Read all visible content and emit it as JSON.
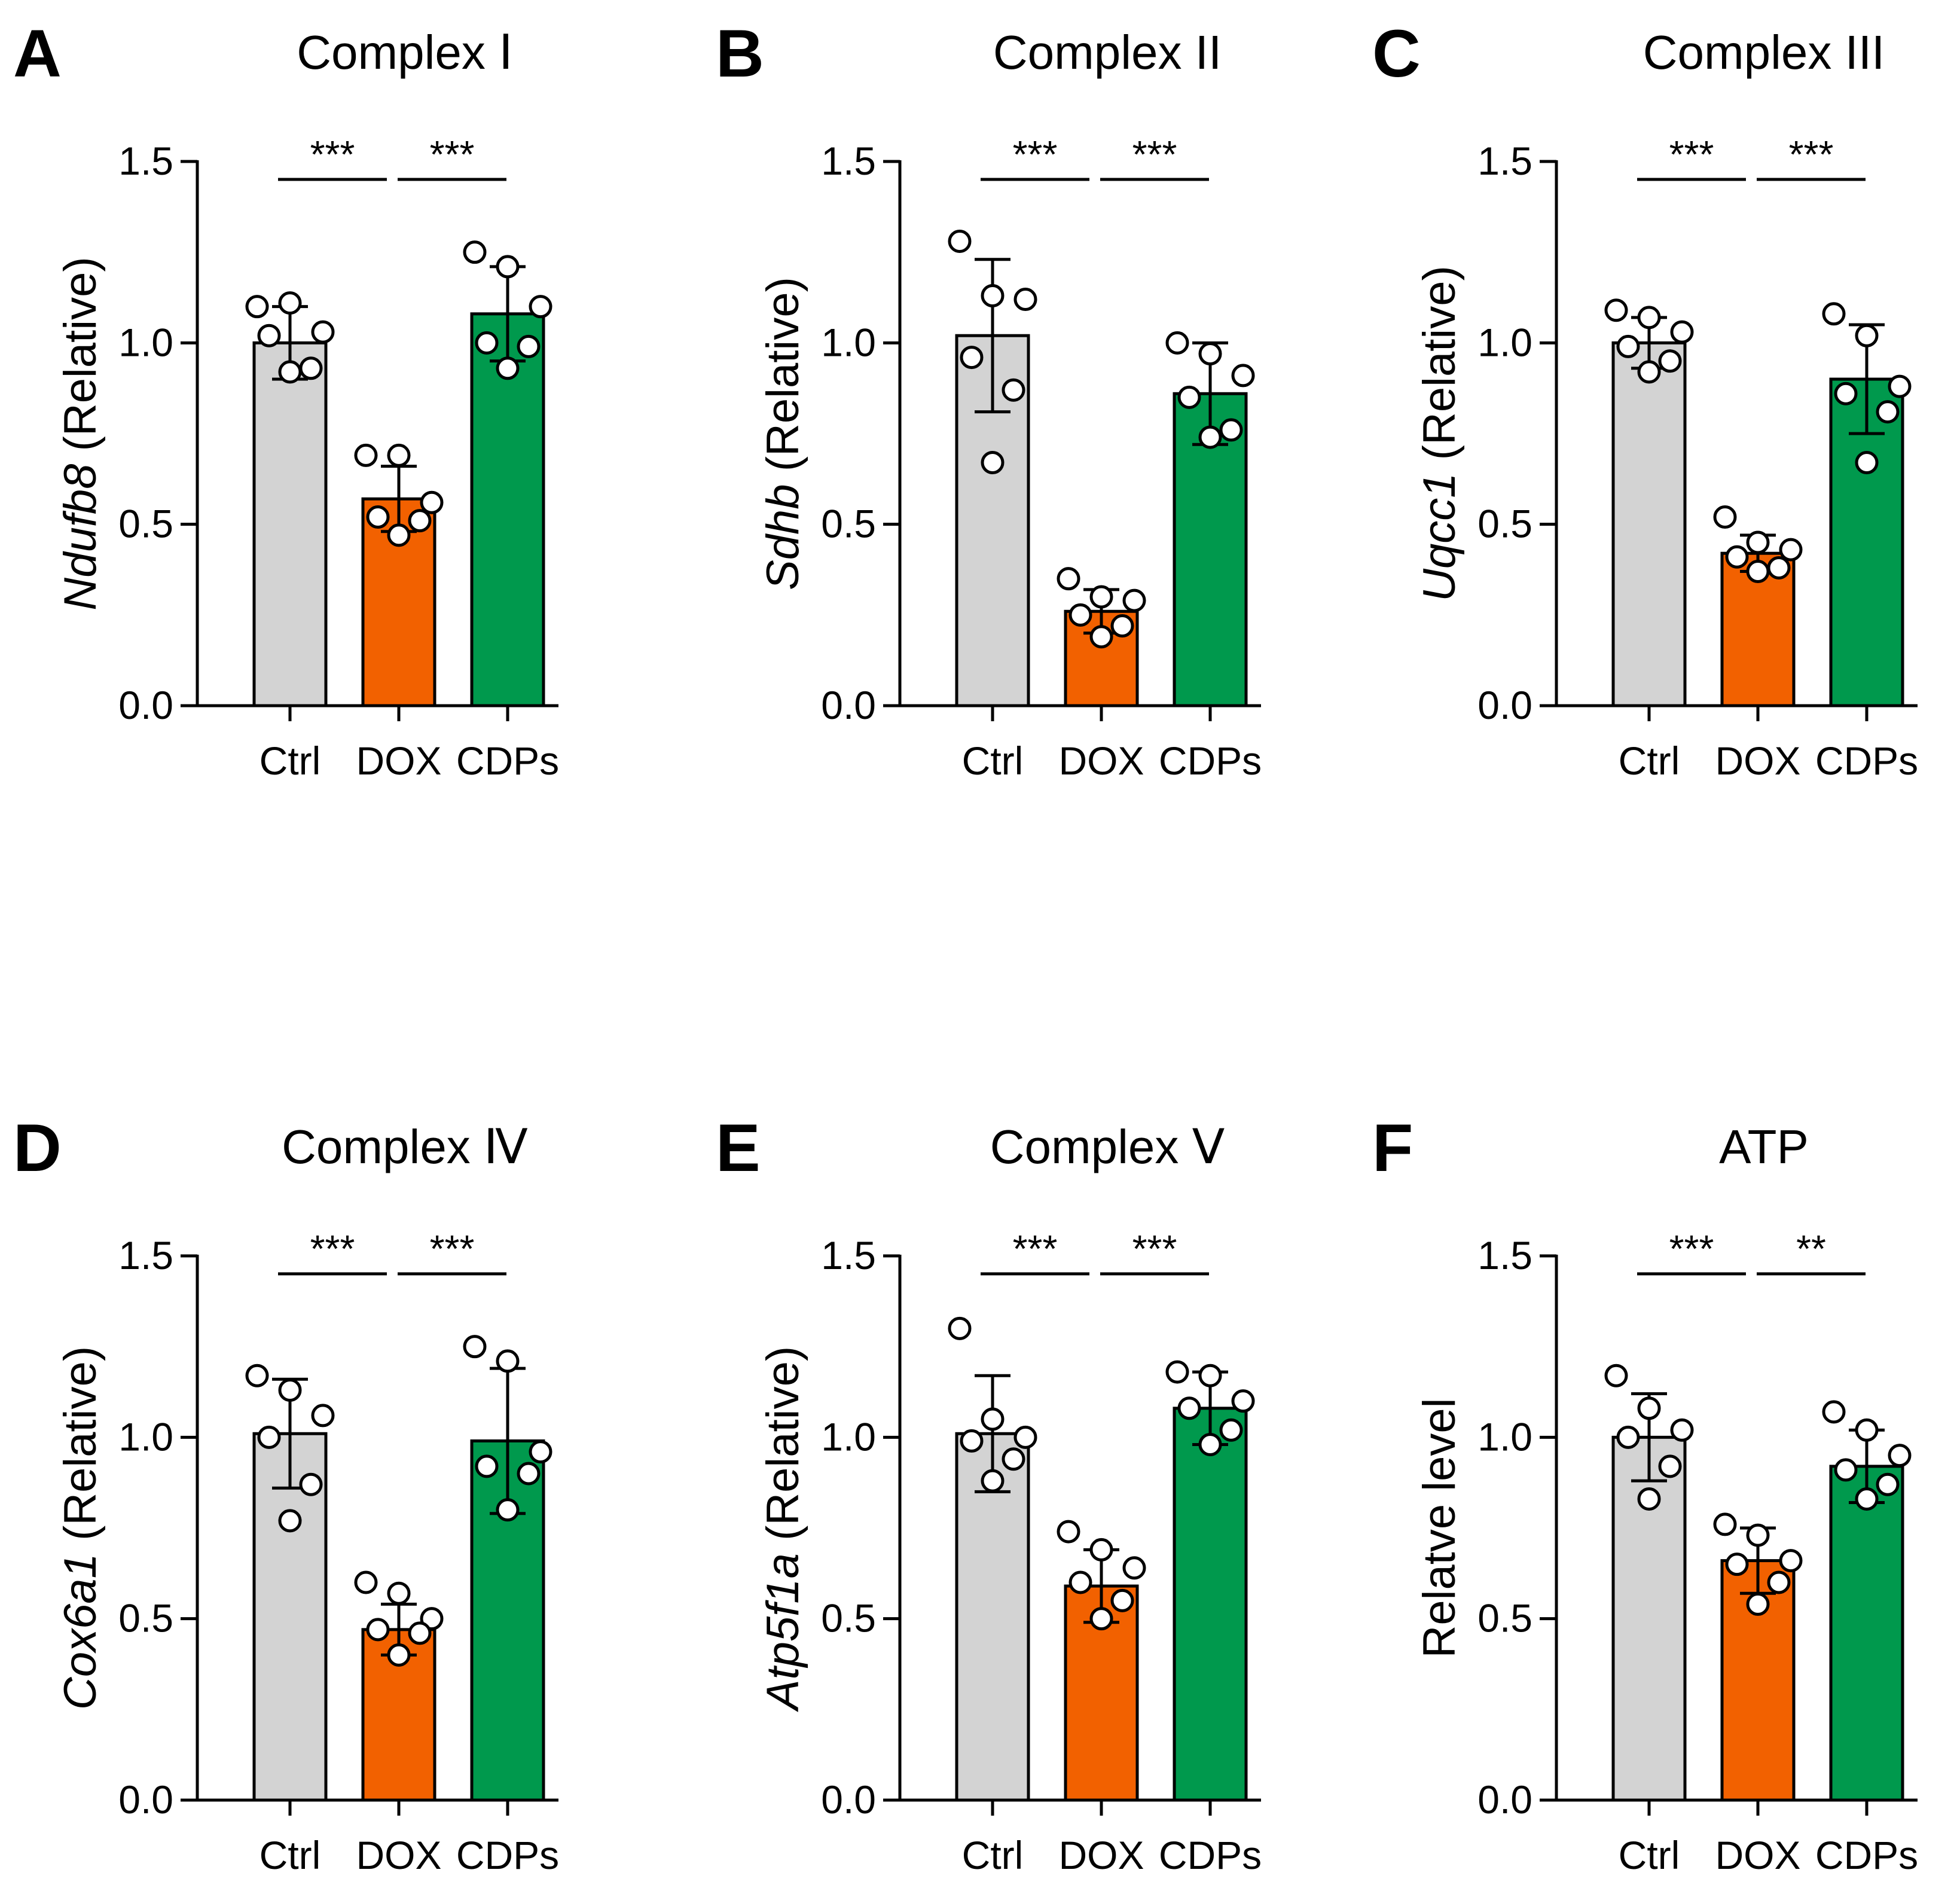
{
  "colors": {
    "Ctrl": "#d3d3d3",
    "DOX": "#f26100",
    "CDPs": "#00994d"
  },
  "chart_data": [
    {
      "type": "bar",
      "letter": "A",
      "title": "Complex Ⅰ",
      "ylabel_gene": "Ndufb8",
      "ylabel_rest": " (Relative)",
      "categories": [
        "Ctrl",
        "DOX",
        "CDPs"
      ],
      "values": [
        1.0,
        0.57,
        1.08
      ],
      "sd": [
        0.1,
        0.09,
        0.13
      ],
      "points": [
        [
          1.1,
          1.11,
          1.03,
          1.02,
          0.93,
          0.92
        ],
        [
          0.69,
          0.69,
          0.56,
          0.52,
          0.51,
          0.47
        ],
        [
          1.25,
          1.21,
          1.1,
          1.0,
          0.99,
          0.93
        ]
      ],
      "significance": [
        {
          "from": 0,
          "to": 1,
          "label": "***"
        },
        {
          "from": 1,
          "to": 2,
          "label": "***"
        }
      ],
      "ylim": [
        0,
        1.5
      ],
      "yticks": [
        "0.0",
        "0.5",
        "1.0",
        "1.5"
      ]
    },
    {
      "type": "bar",
      "letter": "B",
      "title": "Complex II",
      "ylabel_gene": "Sdhb",
      "ylabel_rest": " (Relative)",
      "categories": [
        "Ctrl",
        "DOX",
        "CDPs"
      ],
      "values": [
        1.02,
        0.26,
        0.86
      ],
      "sd": [
        0.21,
        0.06,
        0.14
      ],
      "points": [
        [
          1.28,
          1.13,
          1.12,
          0.96,
          0.87,
          0.67
        ],
        [
          0.35,
          0.3,
          0.29,
          0.25,
          0.22,
          0.19
        ],
        [
          1.0,
          0.97,
          0.91,
          0.85,
          0.76,
          0.74
        ]
      ],
      "significance": [
        {
          "from": 0,
          "to": 1,
          "label": "***"
        },
        {
          "from": 1,
          "to": 2,
          "label": "***"
        }
      ],
      "ylim": [
        0,
        1.5
      ],
      "yticks": [
        "0.0",
        "0.5",
        "1.0",
        "1.5"
      ]
    },
    {
      "type": "bar",
      "letter": "C",
      "title": "Complex III",
      "ylabel_gene": "Uqcc1",
      "ylabel_rest": " (Relative)",
      "categories": [
        "Ctrl",
        "DOX",
        "CDPs"
      ],
      "values": [
        1.0,
        0.42,
        0.9
      ],
      "sd": [
        0.07,
        0.05,
        0.15
      ],
      "points": [
        [
          1.09,
          1.07,
          1.03,
          0.99,
          0.95,
          0.92
        ],
        [
          0.52,
          0.45,
          0.43,
          0.41,
          0.38,
          0.37
        ],
        [
          1.08,
          1.02,
          0.88,
          0.86,
          0.81,
          0.67
        ]
      ],
      "significance": [
        {
          "from": 0,
          "to": 1,
          "label": "***"
        },
        {
          "from": 1,
          "to": 2,
          "label": "***"
        }
      ],
      "ylim": [
        0,
        1.5
      ],
      "yticks": [
        "0.0",
        "0.5",
        "1.0",
        "1.5"
      ]
    },
    {
      "type": "bar",
      "letter": "D",
      "title": "Complex Ⅳ",
      "ylabel_gene": "Cox6a1",
      "ylabel_rest": "  (Relative)",
      "categories": [
        "Ctrl",
        "DOX",
        "CDPs"
      ],
      "values": [
        1.01,
        0.47,
        0.99
      ],
      "sd": [
        0.15,
        0.07,
        0.2
      ],
      "points": [
        [
          1.17,
          1.13,
          1.06,
          1.0,
          0.87,
          0.77
        ],
        [
          0.6,
          0.57,
          0.5,
          0.47,
          0.46,
          0.4
        ],
        [
          1.25,
          1.21,
          0.96,
          0.92,
          0.9,
          0.8
        ]
      ],
      "significance": [
        {
          "from": 0,
          "to": 1,
          "label": "***"
        },
        {
          "from": 1,
          "to": 2,
          "label": "***"
        }
      ],
      "ylim": [
        0,
        1.5
      ],
      "yticks": [
        "0.0",
        "0.5",
        "1.0",
        "1.5"
      ]
    },
    {
      "type": "bar",
      "letter": "E",
      "title": "Complex Ⅴ",
      "ylabel_gene": "Atp5f1a",
      "ylabel_rest": " (Relative)",
      "categories": [
        "Ctrl",
        "DOX",
        "CDPs"
      ],
      "values": [
        1.01,
        0.59,
        1.08
      ],
      "sd": [
        0.16,
        0.1,
        0.1
      ],
      "points": [
        [
          1.3,
          1.05,
          1.0,
          0.99,
          0.94,
          0.88
        ],
        [
          0.74,
          0.69,
          0.64,
          0.6,
          0.55,
          0.5
        ],
        [
          1.18,
          1.17,
          1.1,
          1.08,
          1.02,
          0.98
        ]
      ],
      "significance": [
        {
          "from": 0,
          "to": 1,
          "label": "***"
        },
        {
          "from": 1,
          "to": 2,
          "label": "***"
        }
      ],
      "ylim": [
        0,
        1.5
      ],
      "yticks": [
        "0.0",
        "0.5",
        "1.0",
        "1.5"
      ]
    },
    {
      "type": "bar",
      "letter": "F",
      "title": "ATP",
      "ylabel_gene": "",
      "ylabel_rest": "Relatve level",
      "categories": [
        "Ctrl",
        "DOX",
        "CDPs"
      ],
      "values": [
        1.0,
        0.66,
        0.92
      ],
      "sd": [
        0.12,
        0.09,
        0.1
      ],
      "points": [
        [
          1.17,
          1.08,
          1.02,
          1.0,
          0.92,
          0.83
        ],
        [
          0.76,
          0.73,
          0.66,
          0.65,
          0.6,
          0.54
        ],
        [
          1.07,
          1.02,
          0.95,
          0.91,
          0.87,
          0.83
        ]
      ],
      "significance": [
        {
          "from": 0,
          "to": 1,
          "label": "***"
        },
        {
          "from": 1,
          "to": 2,
          "label": "**"
        }
      ],
      "ylim": [
        0,
        1.5
      ],
      "yticks": [
        "0.0",
        "0.5",
        "1.0",
        "1.5"
      ]
    }
  ]
}
